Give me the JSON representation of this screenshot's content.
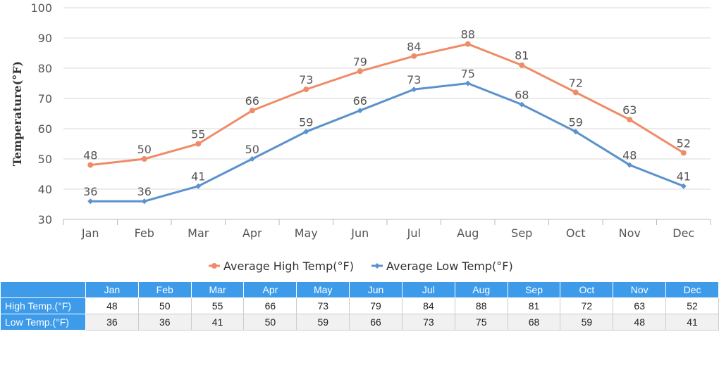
{
  "chart_data": {
    "type": "line",
    "ylabel": "Temperature(°F)",
    "xlabel": "",
    "ylim": [
      30,
      100
    ],
    "yticks": [
      30,
      40,
      50,
      60,
      70,
      80,
      90,
      100
    ],
    "grid": true,
    "legend_position": "bottom",
    "categories": [
      "Jan",
      "Feb",
      "Mar",
      "Apr",
      "May",
      "Jun",
      "Jul",
      "Aug",
      "Sep",
      "Oct",
      "Nov",
      "Dec"
    ],
    "series": [
      {
        "name": "Average High Temp(°F)",
        "color": "#ef8c68",
        "marker": "circle",
        "values": [
          48,
          50,
          55,
          66,
          73,
          79,
          84,
          88,
          81,
          72,
          63,
          52
        ]
      },
      {
        "name": "Average Low Temp(°F)",
        "color": "#5b92cc",
        "marker": "diamond",
        "values": [
          36,
          36,
          41,
          50,
          59,
          66,
          73,
          75,
          68,
          59,
          48,
          41
        ]
      }
    ]
  },
  "table": {
    "header": [
      "",
      "Jan",
      "Feb",
      "Mar",
      "Apr",
      "May",
      "Jun",
      "Jul",
      "Aug",
      "Sep",
      "Oct",
      "Nov",
      "Dec"
    ],
    "rows": [
      {
        "label": "High Temp.(°F)",
        "values": [
          "48",
          "50",
          "55",
          "66",
          "73",
          "79",
          "84",
          "88",
          "81",
          "72",
          "63",
          "52"
        ]
      },
      {
        "label": "Low Temp.(°F)",
        "values": [
          "36",
          "36",
          "41",
          "50",
          "59",
          "66",
          "73",
          "75",
          "68",
          "59",
          "48",
          "41"
        ]
      }
    ],
    "header_color": "#3d9be9"
  }
}
